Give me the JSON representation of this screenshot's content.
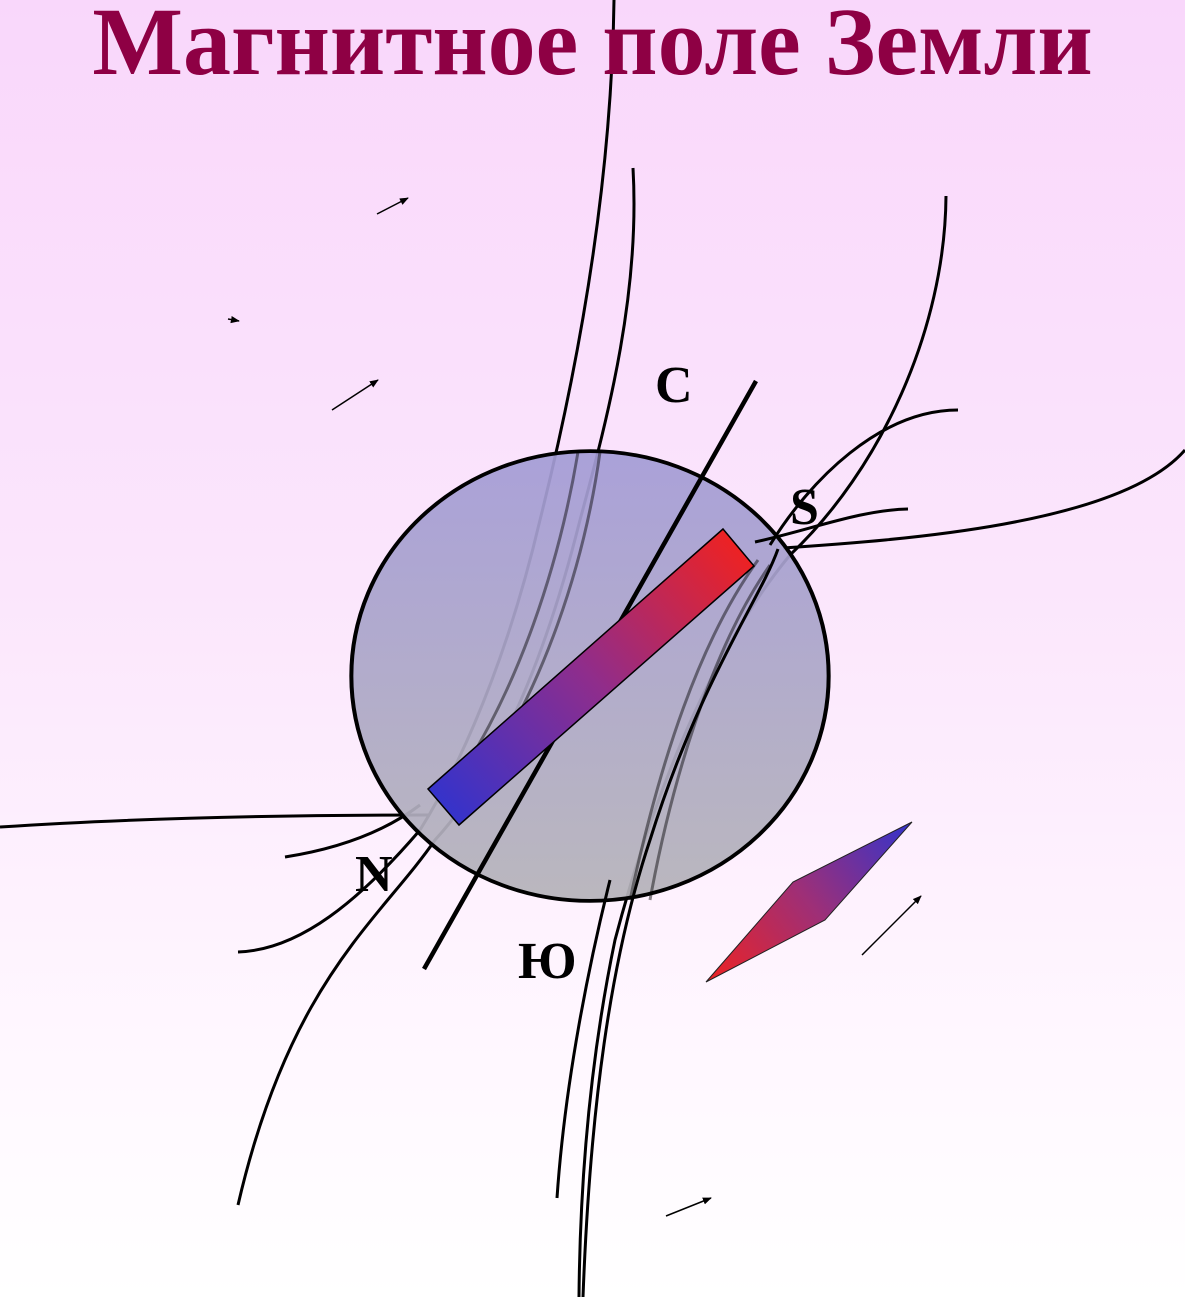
{
  "title": "Магнитное поле Земли",
  "labels": {
    "geo_north": "С",
    "geo_south": "Ю",
    "magnet_south_pole": "S",
    "magnet_north_pole": "N"
  },
  "colors": {
    "title": "#8e0044",
    "magnet_north_end": "#3333cc",
    "magnet_south_end": "#ee2222",
    "globe_fill_top": "#a49cd6",
    "globe_fill_bottom": "#b5b3b9"
  }
}
